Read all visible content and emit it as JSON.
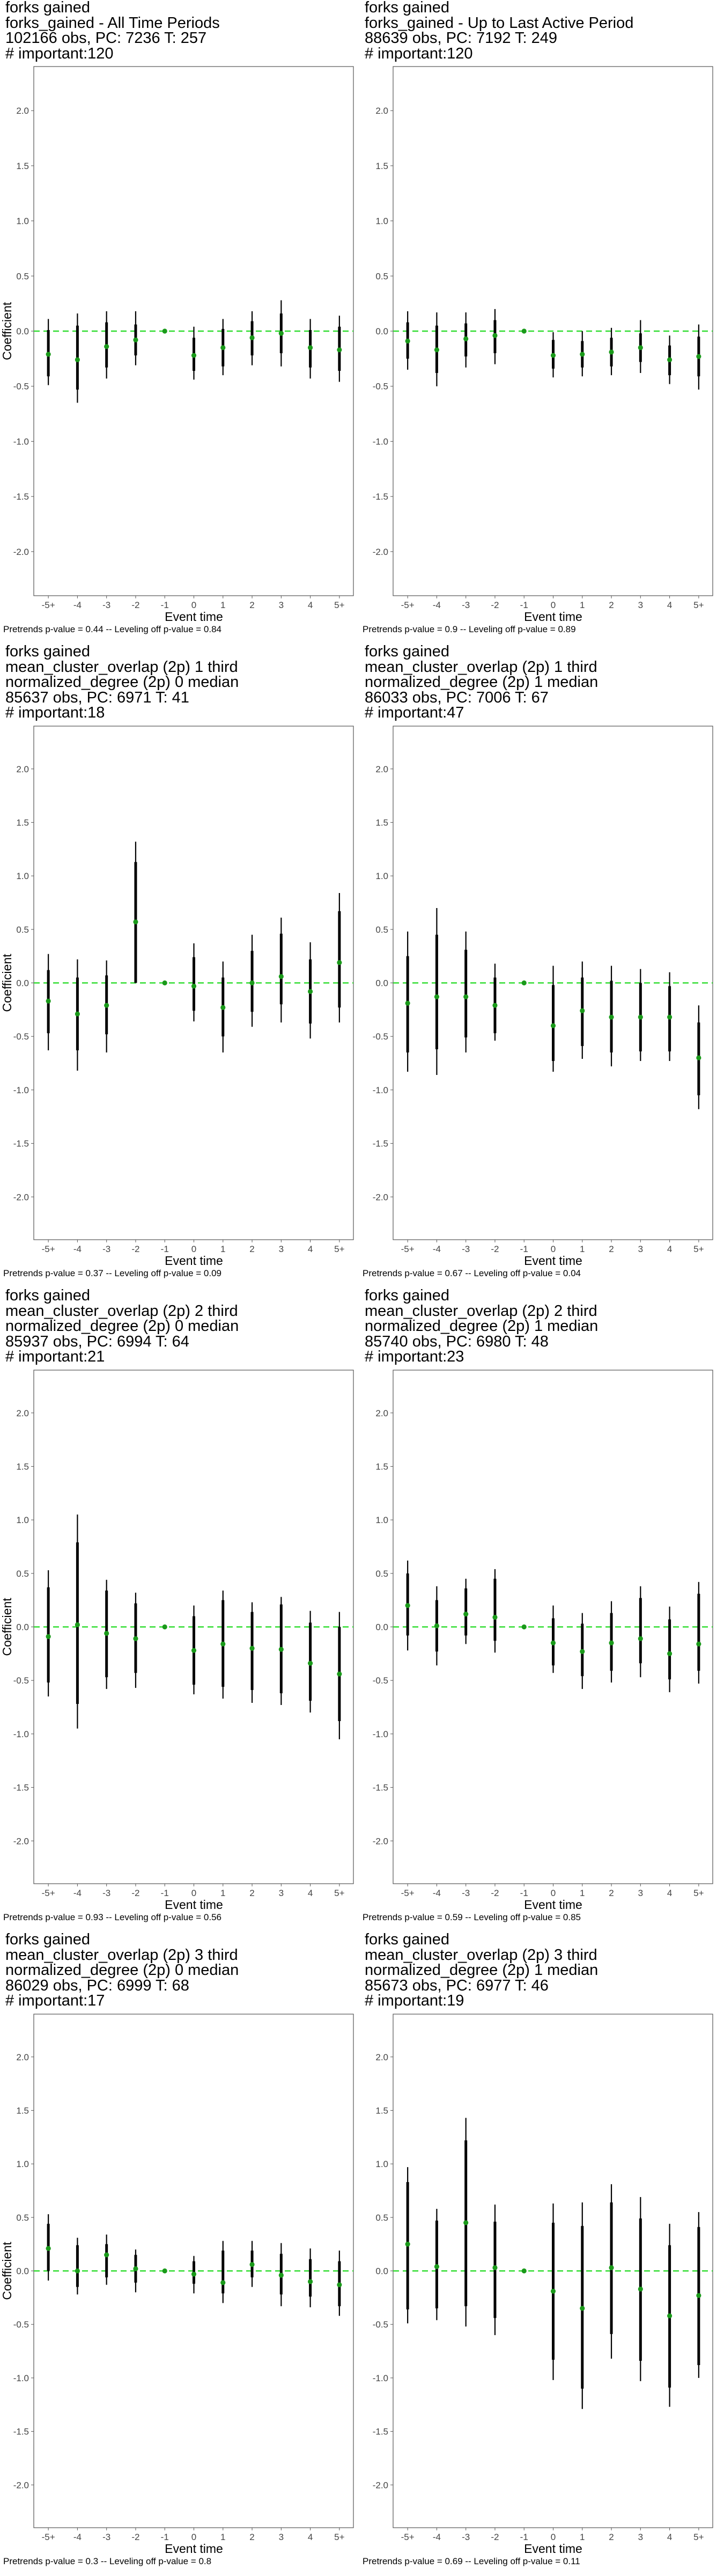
{
  "chart_data": [
    {
      "type": "scatter",
      "title_lines": [
        "forks gained",
        "forks_gained - All Time Periods",
        "102166 obs, PC: 7236 T: 257",
        "# important:120"
      ],
      "xlabel": "Event time",
      "ylabel": "Coefficient",
      "categories": [
        "-5+",
        "-4",
        "-3",
        "-2",
        "-1",
        "0",
        "1",
        "2",
        "3",
        "4",
        "5+"
      ],
      "yticks": [
        "-2.0",
        "-1.5",
        "-1.0",
        "-0.5",
        "0.0",
        "0.5",
        "1.0",
        "1.5",
        "2.0"
      ],
      "ylim": [
        -2.4,
        2.4
      ],
      "reference_line": 0,
      "estimates": [
        -0.21,
        -0.26,
        -0.14,
        -0.08,
        0.0,
        -0.22,
        -0.15,
        -0.06,
        -0.02,
        -0.15,
        -0.17
      ],
      "ci_outer": [
        [
          -0.49,
          0.11
        ],
        [
          -0.65,
          0.16
        ],
        [
          -0.43,
          0.18
        ],
        [
          -0.31,
          0.18
        ],
        null,
        [
          -0.44,
          0.04
        ],
        [
          -0.4,
          0.11
        ],
        [
          -0.31,
          0.18
        ],
        [
          -0.32,
          0.28
        ],
        [
          -0.43,
          0.11
        ],
        [
          -0.46,
          0.14
        ]
      ],
      "ci_inner": [
        [
          -0.41,
          0.01
        ],
        [
          -0.53,
          0.05
        ],
        [
          -0.33,
          0.08
        ],
        [
          -0.22,
          0.06
        ],
        null,
        [
          -0.36,
          -0.06
        ],
        [
          -0.32,
          0.02
        ],
        [
          -0.22,
          0.09
        ],
        [
          -0.2,
          0.16
        ],
        [
          -0.33,
          0.01
        ],
        [
          -0.36,
          0.04
        ]
      ],
      "footnote": "Pretrends p-value = 0.44 -- Leveling off p-value = 0.84"
    },
    {
      "type": "scatter",
      "title_lines": [
        "forks gained",
        "forks_gained - Up to Last Active Period",
        "88639 obs, PC: 7192 T: 249",
        "# important:120"
      ],
      "xlabel": "Event time",
      "ylabel": "",
      "categories": [
        "-5+",
        "-4",
        "-3",
        "-2",
        "-1",
        "0",
        "1",
        "2",
        "3",
        "4",
        "5+"
      ],
      "yticks": [
        "-2.0",
        "-1.5",
        "-1.0",
        "-0.5",
        "0.0",
        "0.5",
        "1.0",
        "1.5",
        "2.0"
      ],
      "ylim": [
        -2.4,
        2.4
      ],
      "reference_line": 0,
      "estimates": [
        -0.09,
        -0.17,
        -0.07,
        -0.04,
        0.0,
        -0.22,
        -0.21,
        -0.19,
        -0.15,
        -0.26,
        -0.23
      ],
      "ci_outer": [
        [
          -0.35,
          0.18
        ],
        [
          -0.5,
          0.17
        ],
        [
          -0.33,
          0.17
        ],
        [
          -0.3,
          0.2
        ],
        null,
        [
          -0.42,
          -0.01
        ],
        [
          -0.41,
          0.0
        ],
        [
          -0.4,
          0.03
        ],
        [
          -0.38,
          0.1
        ],
        [
          -0.48,
          -0.04
        ],
        [
          -0.53,
          0.06
        ]
      ],
      "ci_inner": [
        [
          -0.25,
          0.08
        ],
        [
          -0.38,
          0.05
        ],
        [
          -0.23,
          0.07
        ],
        [
          -0.2,
          0.1
        ],
        null,
        [
          -0.34,
          -0.08
        ],
        [
          -0.33,
          -0.09
        ],
        [
          -0.32,
          -0.06
        ],
        [
          -0.28,
          -0.02
        ],
        [
          -0.4,
          -0.13
        ],
        [
          -0.41,
          -0.05
        ]
      ],
      "footnote": "Pretrends p-value = 0.9 -- Leveling off p-value = 0.89"
    },
    {
      "type": "scatter",
      "title_lines": [
        "forks gained",
        "mean_cluster_overlap (2p) 1 third",
        "normalized_degree (2p) 0 median",
        "85637 obs, PC: 6971 T: 41",
        "# important:18"
      ],
      "xlabel": "Event time",
      "ylabel": "Coefficient",
      "categories": [
        "-5+",
        "-4",
        "-3",
        "-2",
        "-1",
        "0",
        "1",
        "2",
        "3",
        "4",
        "5+"
      ],
      "yticks": [
        "-2.0",
        "-1.5",
        "-1.0",
        "-0.5",
        "0.0",
        "0.5",
        "1.0",
        "1.5",
        "2.0"
      ],
      "ylim": [
        -2.4,
        2.4
      ],
      "reference_line": 0,
      "estimates": [
        -0.17,
        -0.29,
        -0.21,
        0.57,
        0.0,
        -0.03,
        -0.23,
        0.0,
        0.06,
        -0.08,
        0.19
      ],
      "ci_outer": [
        [
          -0.63,
          0.27
        ],
        [
          -0.82,
          0.22
        ],
        [
          -0.65,
          0.21
        ],
        [
          0.0,
          1.32
        ],
        null,
        [
          -0.36,
          0.37
        ],
        [
          -0.65,
          0.2
        ],
        [
          -0.41,
          0.45
        ],
        [
          -0.37,
          0.61
        ],
        [
          -0.52,
          0.38
        ],
        [
          -0.37,
          0.84
        ]
      ],
      "ci_inner": [
        [
          -0.47,
          0.12
        ],
        [
          -0.63,
          0.05
        ],
        [
          -0.48,
          0.07
        ],
        [
          0.0,
          1.13
        ],
        null,
        [
          -0.26,
          0.24
        ],
        [
          -0.5,
          0.05
        ],
        [
          -0.27,
          0.3
        ],
        [
          -0.2,
          0.46
        ],
        [
          -0.38,
          0.22
        ],
        [
          -0.23,
          0.67
        ]
      ],
      "footnote": "Pretrends p-value = 0.37 -- Leveling off p-value = 0.09"
    },
    {
      "type": "scatter",
      "title_lines": [
        "forks gained",
        "mean_cluster_overlap (2p) 1 third",
        "normalized_degree (2p) 1 median",
        "86033 obs, PC: 7006 T: 67",
        "# important:47"
      ],
      "xlabel": "Event time",
      "ylabel": "",
      "categories": [
        "-5+",
        "-4",
        "-3",
        "-2",
        "-1",
        "0",
        "1",
        "2",
        "3",
        "4",
        "5+"
      ],
      "yticks": [
        "-2.0",
        "-1.5",
        "-1.0",
        "-0.5",
        "0.0",
        "0.5",
        "1.0",
        "1.5",
        "2.0"
      ],
      "ylim": [
        -2.4,
        2.4
      ],
      "reference_line": 0,
      "estimates": [
        -0.19,
        -0.13,
        -0.13,
        -0.21,
        0.0,
        -0.4,
        -0.26,
        -0.32,
        -0.32,
        -0.32,
        -0.7
      ],
      "ci_outer": [
        [
          -0.83,
          0.48
        ],
        [
          -0.86,
          0.7
        ],
        [
          -0.65,
          0.48
        ],
        [
          -0.54,
          0.18
        ],
        null,
        [
          -0.83,
          0.16
        ],
        [
          -0.71,
          0.2
        ],
        [
          -0.78,
          0.16
        ],
        [
          -0.73,
          0.13
        ],
        [
          -0.73,
          0.1
        ],
        [
          -1.18,
          -0.21
        ]
      ],
      "ci_inner": [
        [
          -0.65,
          0.25
        ],
        [
          -0.62,
          0.45
        ],
        [
          -0.51,
          0.31
        ],
        [
          -0.47,
          0.05
        ],
        null,
        [
          -0.73,
          -0.02
        ],
        [
          -0.59,
          0.05
        ],
        [
          -0.65,
          0.02
        ],
        [
          -0.64,
          0.0
        ],
        [
          -0.64,
          -0.03
        ],
        [
          -1.05,
          -0.37
        ]
      ],
      "footnote": "Pretrends p-value = 0.67 -- Leveling off p-value = 0.04"
    },
    {
      "type": "scatter",
      "title_lines": [
        "forks gained",
        "mean_cluster_overlap (2p) 2 third",
        "normalized_degree (2p) 0 median",
        "85937 obs, PC: 6994 T: 64",
        "# important:21"
      ],
      "xlabel": "Event time",
      "ylabel": "Coefficient",
      "categories": [
        "-5+",
        "-4",
        "-3",
        "-2",
        "-1",
        "0",
        "1",
        "2",
        "3",
        "4",
        "5+"
      ],
      "yticks": [
        "-2.0",
        "-1.5",
        "-1.0",
        "-0.5",
        "0.0",
        "0.5",
        "1.0",
        "1.5",
        "2.0"
      ],
      "ylim": [
        -2.4,
        2.4
      ],
      "reference_line": 0,
      "estimates": [
        -0.09,
        0.02,
        -0.06,
        -0.11,
        0.0,
        -0.22,
        -0.16,
        -0.2,
        -0.21,
        -0.34,
        -0.44
      ],
      "ci_outer": [
        [
          -0.65,
          0.53
        ],
        [
          -0.95,
          1.05
        ],
        [
          -0.58,
          0.44
        ],
        [
          -0.57,
          0.32
        ],
        null,
        [
          -0.63,
          0.2
        ],
        [
          -0.67,
          0.34
        ],
        [
          -0.71,
          0.23
        ],
        [
          -0.73,
          0.28
        ],
        [
          -0.8,
          0.15
        ],
        [
          -1.05,
          0.14
        ]
      ],
      "ci_inner": [
        [
          -0.52,
          0.37
        ],
        [
          -0.72,
          0.79
        ],
        [
          -0.47,
          0.34
        ],
        [
          -0.43,
          0.22
        ],
        null,
        [
          -0.54,
          0.1
        ],
        [
          -0.56,
          0.25
        ],
        [
          -0.59,
          0.14
        ],
        [
          -0.62,
          0.21
        ],
        [
          -0.69,
          0.04
        ],
        [
          -0.88,
          0.0
        ]
      ],
      "footnote": "Pretrends p-value = 0.93 -- Leveling off p-value = 0.56"
    },
    {
      "type": "scatter",
      "title_lines": [
        "forks gained",
        "mean_cluster_overlap (2p) 2 third",
        "normalized_degree (2p) 1 median",
        "85740 obs, PC: 6980 T: 48",
        "# important:23"
      ],
      "xlabel": "Event time",
      "ylabel": "",
      "categories": [
        "-5+",
        "-4",
        "-3",
        "-2",
        "-1",
        "0",
        "1",
        "2",
        "3",
        "4",
        "5+"
      ],
      "yticks": [
        "-2.0",
        "-1.5",
        "-1.0",
        "-0.5",
        "0.0",
        "0.5",
        "1.0",
        "1.5",
        "2.0"
      ],
      "ylim": [
        -2.4,
        2.4
      ],
      "reference_line": 0,
      "estimates": [
        0.2,
        0.01,
        0.12,
        0.09,
        0.0,
        -0.15,
        -0.23,
        -0.15,
        -0.11,
        -0.25,
        -0.16
      ],
      "ci_outer": [
        [
          -0.22,
          0.62
        ],
        [
          -0.36,
          0.38
        ],
        [
          -0.16,
          0.45
        ],
        [
          -0.24,
          0.54
        ],
        null,
        [
          -0.43,
          0.2
        ],
        [
          -0.58,
          0.13
        ],
        [
          -0.52,
          0.24
        ],
        [
          -0.47,
          0.38
        ],
        [
          -0.61,
          0.19
        ],
        [
          -0.53,
          0.42
        ]
      ],
      "ci_inner": [
        [
          -0.08,
          0.5
        ],
        [
          -0.23,
          0.25
        ],
        [
          -0.08,
          0.36
        ],
        [
          -0.13,
          0.45
        ],
        null,
        [
          -0.36,
          0.08
        ],
        [
          -0.46,
          0.03
        ],
        [
          -0.41,
          0.13
        ],
        [
          -0.34,
          0.27
        ],
        [
          -0.49,
          0.07
        ],
        [
          -0.41,
          0.31
        ]
      ],
      "footnote": "Pretrends p-value = 0.59 -- Leveling off p-value = 0.85"
    },
    {
      "type": "scatter",
      "title_lines": [
        "forks gained",
        "mean_cluster_overlap (2p) 3 third",
        "normalized_degree (2p) 0 median",
        "86029 obs, PC: 6999 T: 68",
        "# important:17"
      ],
      "xlabel": "Event time",
      "ylabel": "Coefficient",
      "categories": [
        "-5+",
        "-4",
        "-3",
        "-2",
        "-1",
        "0",
        "1",
        "2",
        "3",
        "4",
        "5+"
      ],
      "yticks": [
        "-2.0",
        "-1.5",
        "-1.0",
        "-0.5",
        "0.0",
        "0.5",
        "1.0",
        "1.5",
        "2.0"
      ],
      "ylim": [
        -2.4,
        2.4
      ],
      "reference_line": 0,
      "estimates": [
        0.21,
        0.0,
        0.15,
        0.02,
        0.0,
        -0.03,
        -0.11,
        0.06,
        -0.04,
        -0.1,
        -0.13
      ],
      "ci_outer": [
        [
          -0.09,
          0.53
        ],
        [
          -0.22,
          0.31
        ],
        [
          -0.13,
          0.34
        ],
        [
          -0.2,
          0.2
        ],
        null,
        [
          -0.21,
          0.14
        ],
        [
          -0.3,
          0.28
        ],
        [
          -0.15,
          0.28
        ],
        [
          -0.33,
          0.26
        ],
        [
          -0.34,
          0.21
        ],
        [
          -0.42,
          0.19
        ]
      ],
      "ci_inner": [
        [
          0.0,
          0.44
        ],
        [
          -0.15,
          0.24
        ],
        [
          -0.06,
          0.25
        ],
        [
          -0.11,
          0.15
        ],
        null,
        [
          -0.12,
          0.09
        ],
        [
          -0.21,
          0.19
        ],
        [
          -0.06,
          0.19
        ],
        [
          -0.22,
          0.16
        ],
        [
          -0.24,
          0.11
        ],
        [
          -0.33,
          0.09
        ]
      ],
      "footnote": "Pretrends p-value = 0.3 -- Leveling off p-value = 0.8"
    },
    {
      "type": "scatter",
      "title_lines": [
        "forks gained",
        "mean_cluster_overlap (2p) 3 third",
        "normalized_degree (2p) 1 median",
        "85673 obs, PC: 6977 T: 46",
        "# important:19"
      ],
      "xlabel": "Event time",
      "ylabel": "",
      "categories": [
        "-5+",
        "-4",
        "-3",
        "-2",
        "-1",
        "0",
        "1",
        "2",
        "3",
        "4",
        "5+"
      ],
      "yticks": [
        "-2.0",
        "-1.5",
        "-1.0",
        "-0.5",
        "0.0",
        "0.5",
        "1.0",
        "1.5",
        "2.0"
      ],
      "ylim": [
        -2.4,
        2.4
      ],
      "reference_line": 0,
      "estimates": [
        0.25,
        0.04,
        0.45,
        0.03,
        0.0,
        -0.19,
        -0.35,
        0.03,
        -0.17,
        -0.42,
        -0.23
      ],
      "ci_outer": [
        [
          -0.49,
          0.97
        ],
        [
          -0.46,
          0.58
        ],
        [
          -0.52,
          1.43
        ],
        [
          -0.6,
          0.62
        ],
        null,
        [
          -1.02,
          0.63
        ],
        [
          -1.29,
          0.64
        ],
        [
          -0.82,
          0.81
        ],
        [
          -1.03,
          0.69
        ],
        [
          -1.27,
          0.44
        ],
        [
          -1.0,
          0.55
        ]
      ],
      "ci_inner": [
        [
          -0.36,
          0.83
        ],
        [
          -0.35,
          0.47
        ],
        [
          -0.33,
          1.22
        ],
        [
          -0.44,
          0.46
        ],
        null,
        [
          -0.83,
          0.45
        ],
        [
          -1.1,
          0.42
        ],
        [
          -0.59,
          0.64
        ],
        [
          -0.84,
          0.49
        ],
        [
          -1.09,
          0.24
        ],
        [
          -0.88,
          0.41
        ]
      ],
      "footnote": "Pretrends p-value = 0.69 -- Leveling off p-value = 0.11"
    }
  ],
  "colors": {
    "reference_line": "#33dd33",
    "point": "#1a9a1a",
    "error_bar": "#000000",
    "frame": "#555555",
    "tick_text": "#444444"
  }
}
